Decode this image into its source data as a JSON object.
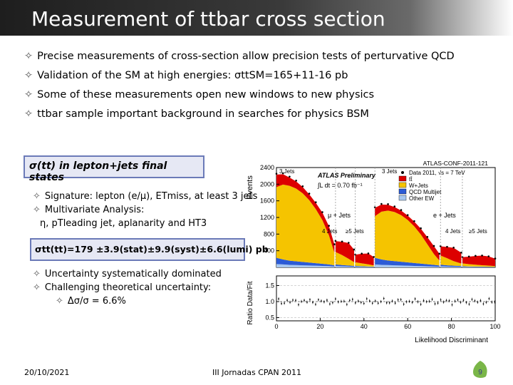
{
  "title": "Measurement of ttbar cross section",
  "bullets": [
    "Precise measurements of cross-section allow precision tests of perturvative QCD",
    "Validation of the SM at high energies: σttSM=165+11-16 pb",
    "Some of these measurements open new windows to new physics",
    "ttbar sample important background in searches for physics BSM"
  ],
  "section_box": "σ(tt) in lepton+jets final states",
  "details": [
    "Signature: lepton (e/μ), ETmiss, at least 3 jets",
    "Multivariate Analysis:",
    "η, pTleading jet, aplanarity and HT3"
  ],
  "result_box": "σtt(tt)=179 ±3.9(stat)±9.9(syst)±6.6(lumi) pb",
  "uncertainty": [
    "Uncertainty systematically dominated",
    "Challenging theoretical uncertainty:",
    "Δσ/σ = 6.6%"
  ],
  "chart_data": {
    "type": "area",
    "title": "ATLAS-CONF-2011-121",
    "ylabel": "Events",
    "ratio_ylabel": "Ratio Data/Fit",
    "xlabel": "Likelihood Discriminant",
    "x_ticks": [
      "0",
      "20",
      "40",
      "60",
      "80",
      "100"
    ],
    "y_ticks": [
      "400",
      "800",
      "1200",
      "1600",
      "2000",
      "2400"
    ],
    "ratio_ticks": [
      "0.5",
      "1.0",
      "1.5"
    ],
    "ylim": [
      0,
      2400
    ],
    "ratio_ylim": [
      0.4,
      1.8
    ],
    "legend_entries": [
      "Data 2011, √s = 7 TeV",
      "tt̄",
      "W+Jets",
      "QCD Multijet",
      "Other EW"
    ],
    "legend_placement": "top-right",
    "annotations": [
      "ATLAS Preliminary",
      "∫L dt = 0.70 fb⁻¹",
      "3 Jets",
      "4 Jets",
      "≥5 Jets",
      "μ + Jets",
      "e + Jets"
    ],
    "colors": {
      "ttbar": "#dd0000",
      "wjets": "#f5c400",
      "qcd": "#2c5bd6",
      "other": "#a8c8f0",
      "data": "#000000"
    },
    "regions": [
      {
        "name": "μ+jets 3 jets",
        "x": [
          0,
          3,
          6,
          9,
          12,
          15,
          18,
          21,
          24,
          26.5
        ],
        "ttbar": [
          300,
          250,
          200,
          170,
          150,
          140,
          150,
          180,
          220,
          200
        ],
        "wjets": [
          1700,
          1800,
          1800,
          1750,
          1650,
          1500,
          1300,
          1050,
          700,
          300
        ],
        "qcd": [
          150,
          120,
          100,
          90,
          80,
          70,
          60,
          50,
          40,
          30
        ],
        "other": [
          80,
          70,
          60,
          55,
          50,
          45,
          40,
          35,
          30,
          20
        ]
      },
      {
        "name": "μ+jets 4 jets",
        "x": [
          27,
          30,
          33,
          35.5
        ],
        "ttbar": [
          260,
          320,
          380,
          300
        ],
        "wjets": [
          300,
          240,
          160,
          90
        ],
        "qcd": [
          40,
          30,
          25,
          20
        ],
        "other": [
          30,
          25,
          20,
          15
        ]
      },
      {
        "name": "μ+jets ≥5 jets",
        "x": [
          36,
          39,
          42,
          44.5
        ],
        "ttbar": [
          180,
          230,
          260,
          200
        ],
        "wjets": [
          90,
          70,
          50,
          30
        ],
        "qcd": [
          20,
          15,
          12,
          10
        ],
        "other": [
          15,
          12,
          10,
          8
        ]
      },
      {
        "name": "e+jets 3 jets",
        "x": [
          45,
          48,
          51,
          54,
          57,
          60,
          63,
          66,
          69,
          72,
          74.5
        ],
        "ttbar": [
          200,
          170,
          140,
          120,
          110,
          105,
          115,
          140,
          170,
          190,
          160
        ],
        "wjets": [
          1000,
          1150,
          1200,
          1180,
          1120,
          1020,
          880,
          700,
          480,
          260,
          120
        ],
        "qcd": [
          160,
          130,
          110,
          100,
          90,
          80,
          70,
          60,
          50,
          40,
          30
        ],
        "other": [
          70,
          60,
          55,
          50,
          45,
          40,
          35,
          30,
          25,
          20,
          15
        ]
      },
      {
        "name": "e+jets 4 jets",
        "x": [
          75,
          78,
          81,
          84.5
        ],
        "ttbar": [
          220,
          270,
          320,
          260
        ],
        "wjets": [
          220,
          170,
          110,
          60
        ],
        "qcd": [
          40,
          30,
          25,
          20
        ],
        "other": [
          25,
          20,
          15,
          12
        ]
      },
      {
        "name": "e+jets ≥5 jets",
        "x": [
          85,
          88,
          91,
          94,
          97,
          100
        ],
        "ttbar": [
          150,
          180,
          210,
          230,
          220,
          180
        ],
        "wjets": [
          70,
          55,
          45,
          35,
          28,
          20
        ],
        "qcd": [
          15,
          12,
          10,
          9,
          8,
          6
        ],
        "other": [
          12,
          10,
          9,
          8,
          7,
          5
        ]
      }
    ]
  },
  "footer": {
    "date": "20/10/2021",
    "center": "III Jornadas CPAN 2011",
    "page": "9"
  }
}
